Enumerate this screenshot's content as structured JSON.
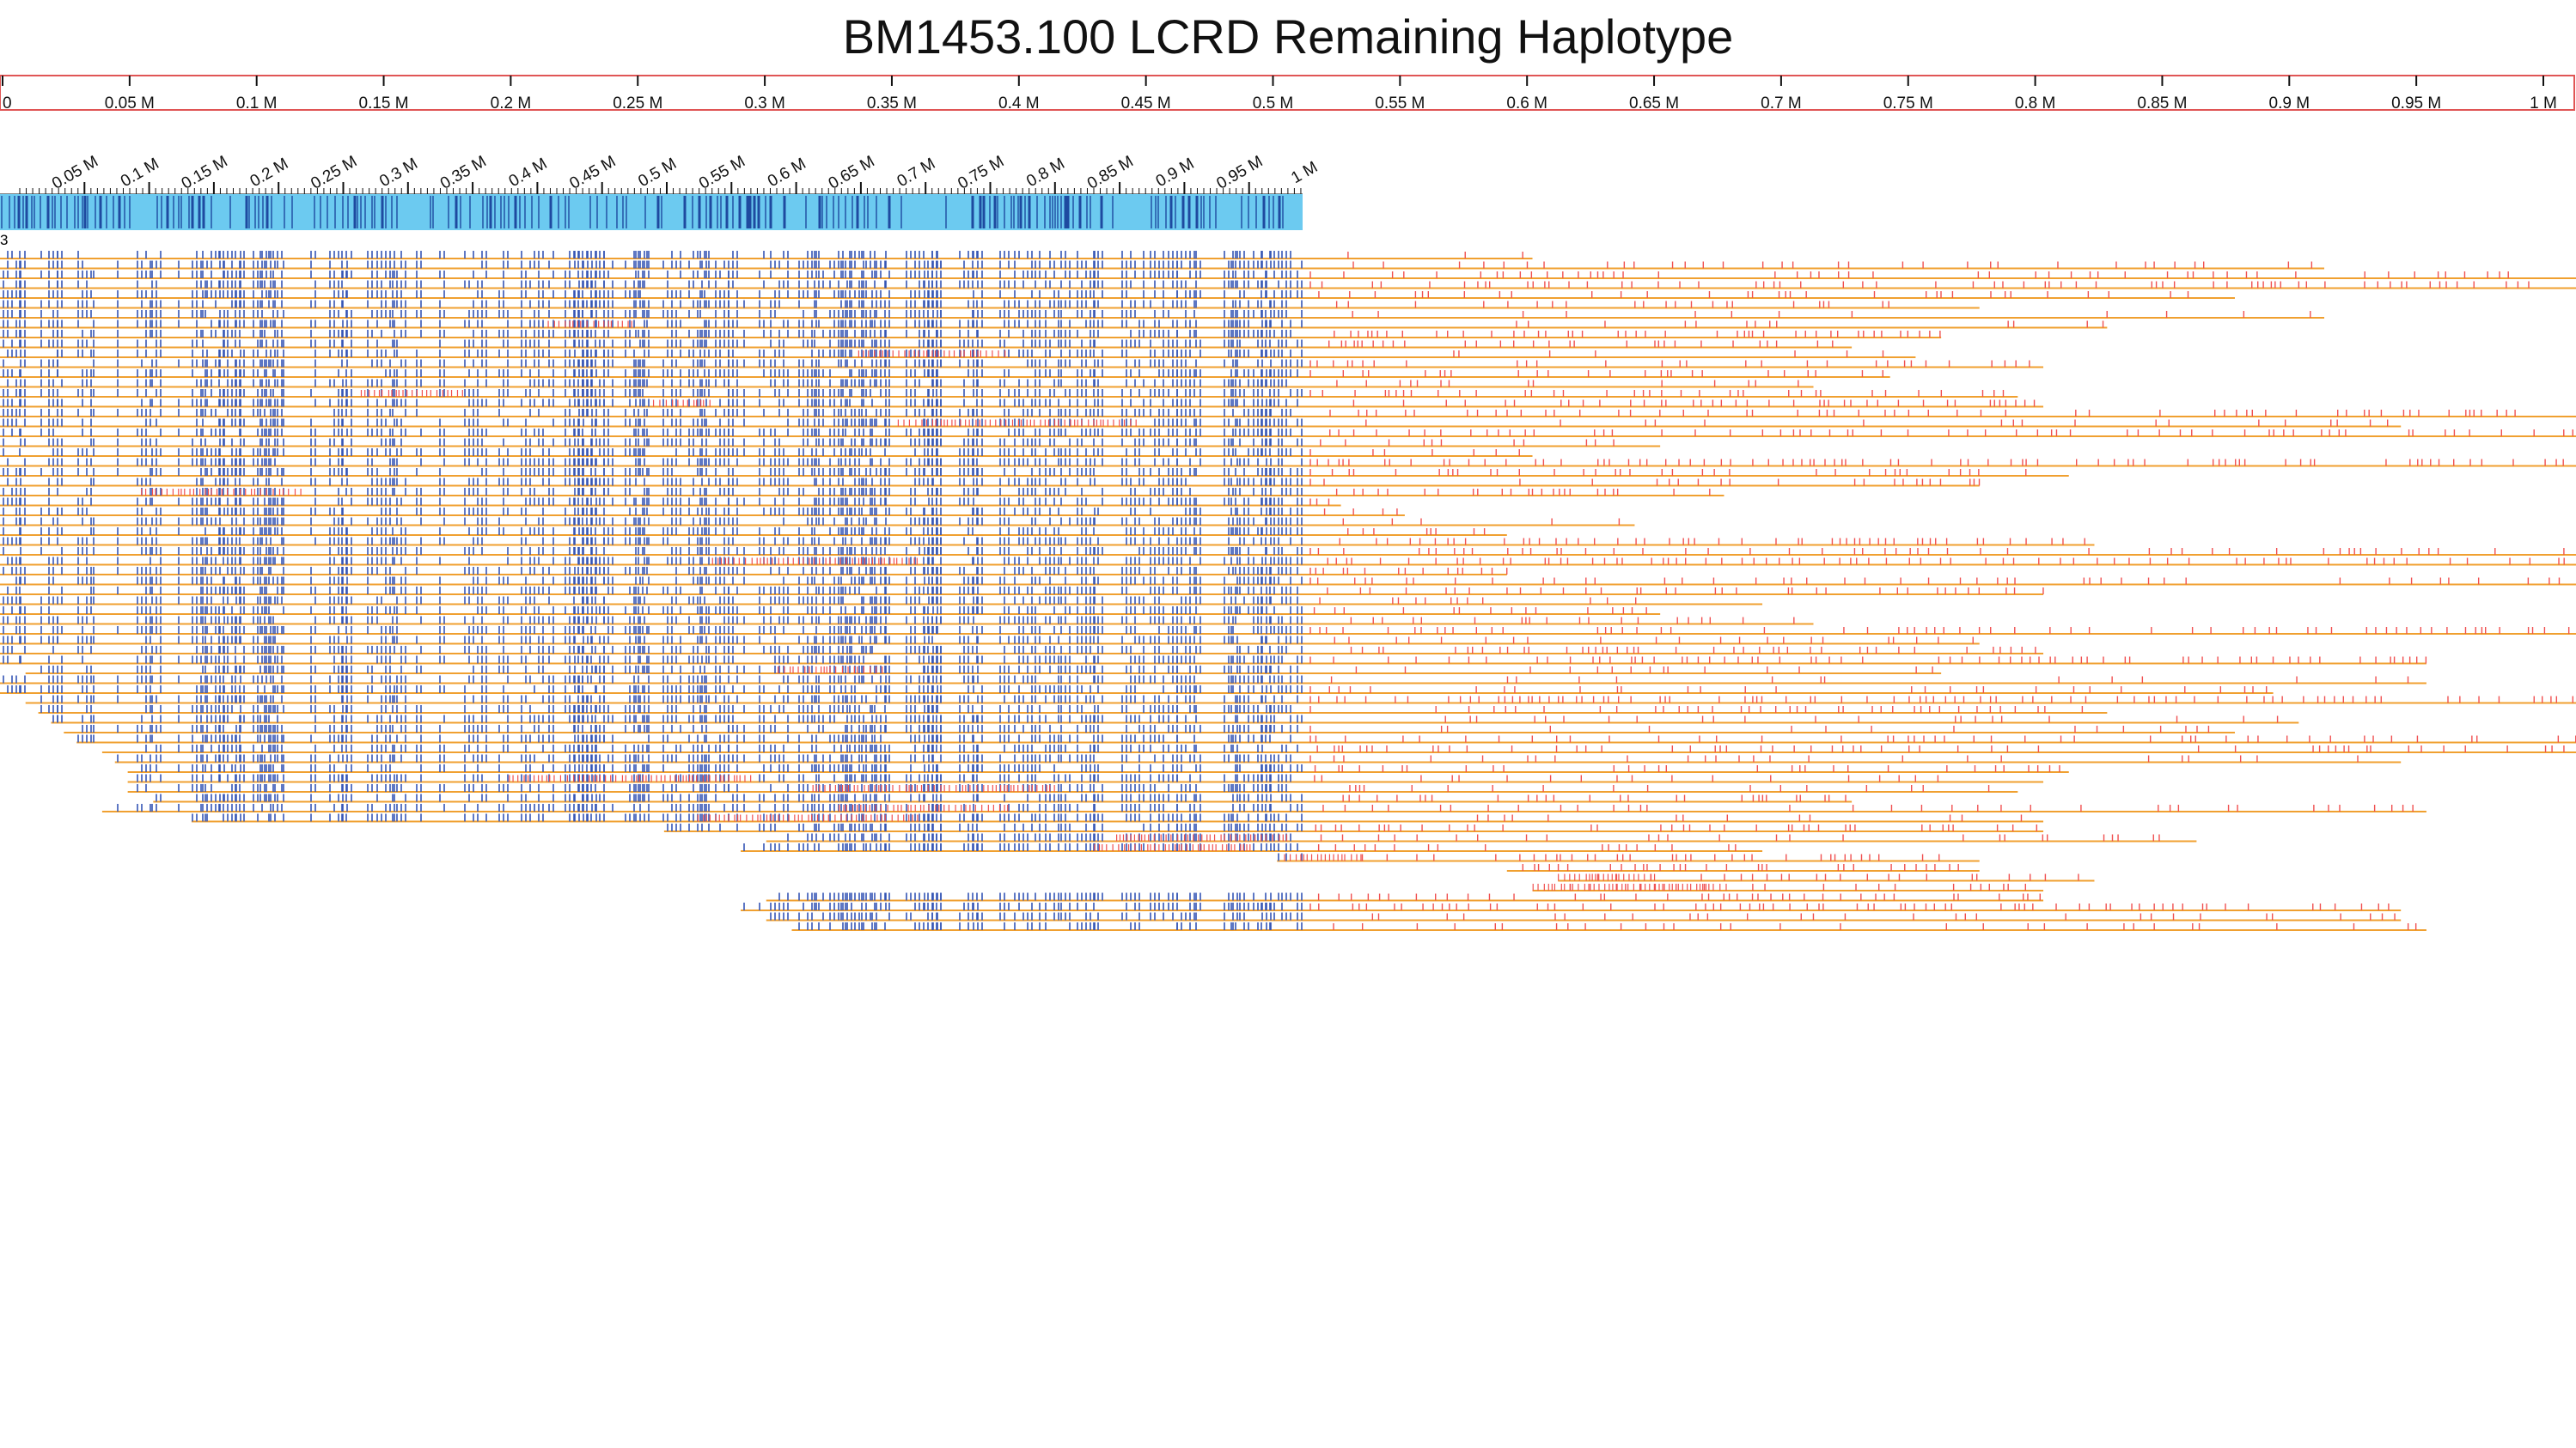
{
  "title": "BM1453.100 LCRD Remaining Haplotype",
  "colors": {
    "ruler_border": "#e05555",
    "ref_bar": "#6ccaf0",
    "ref_dark": "#1e4aa0",
    "read_line": "#f0a030",
    "matched_tick": "#3555b5",
    "mismatch_tick": "#f05050",
    "text": "#111111"
  },
  "top_ruler": {
    "min": 0,
    "max": 1,
    "labels": [
      "0",
      "0.05 M",
      "0.1 M",
      "0.15 M",
      "0.2 M",
      "0.25 M",
      "0.3 M",
      "0.35 M",
      "0.4 M",
      "0.45 M",
      "0.5 M",
      "0.55 M",
      "0.6 M",
      "0.65 M",
      "0.7 M",
      "0.75 M",
      "0.8 M",
      "0.85 M",
      "0.9 M",
      "0.95 M",
      "1 M"
    ]
  },
  "reference": {
    "label": "3",
    "min": 0,
    "max": 1.02,
    "labels": [
      "0.05 M",
      "0.1 M",
      "0.15 M",
      "0.2 M",
      "0.25 M",
      "0.3 M",
      "0.35 M",
      "0.4 M",
      "0.45 M",
      "0.5 M",
      "0.55 M",
      "0.6 M",
      "0.65 M",
      "0.7 M",
      "0.75 M",
      "0.8 M",
      "0.85 M",
      "0.9 M",
      "0.95 M",
      "1 M"
    ]
  },
  "reads": [
    [
      0.0,
      1.2
    ],
    [
      0.0,
      1.82
    ],
    [
      0.0,
      2.35
    ],
    [
      0.0,
      2.2
    ],
    [
      0.0,
      1.75
    ],
    [
      0.0,
      1.55
    ],
    [
      0.0,
      1.82
    ],
    [
      0.0,
      1.65
    ],
    [
      0.0,
      1.52
    ],
    [
      0.0,
      1.45
    ],
    [
      0.0,
      1.5
    ],
    [
      0.0,
      1.6
    ],
    [
      0.0,
      1.48
    ],
    [
      0.0,
      1.42
    ],
    [
      0.0,
      1.58
    ],
    [
      0.0,
      1.6
    ],
    [
      0.0,
      2.72
    ],
    [
      0.0,
      1.88
    ],
    [
      0.0,
      2.22
    ],
    [
      0.0,
      1.3
    ],
    [
      0.0,
      1.2
    ],
    [
      0.0,
      2.36
    ],
    [
      0.0,
      1.62
    ],
    [
      0.0,
      1.55
    ],
    [
      0.0,
      1.35
    ],
    [
      0.0,
      1.05
    ],
    [
      0.0,
      1.1
    ],
    [
      0.0,
      1.28
    ],
    [
      0.0,
      1.18
    ],
    [
      0.0,
      1.64
    ],
    [
      0.0,
      2.6
    ],
    [
      0.0,
      2.08
    ],
    [
      0.0,
      1.18
    ],
    [
      0.0,
      2.2
    ],
    [
      0.0,
      1.6
    ],
    [
      0.0,
      1.38
    ],
    [
      0.0,
      1.3
    ],
    [
      0.0,
      1.42
    ],
    [
      0.0,
      2.02
    ],
    [
      0.0,
      1.55
    ],
    [
      0.0,
      1.6
    ],
    [
      0.0,
      1.9
    ],
    [
      0.02,
      1.52
    ],
    [
      0.0,
      1.9
    ],
    [
      0.0,
      1.78
    ],
    [
      0.02,
      2.3
    ],
    [
      0.03,
      1.65
    ],
    [
      0.04,
      1.8
    ],
    [
      0.05,
      1.75
    ],
    [
      0.06,
      2.52
    ],
    [
      0.08,
      2.02
    ],
    [
      0.09,
      1.88
    ],
    [
      0.1,
      1.62
    ],
    [
      0.1,
      1.6
    ],
    [
      0.1,
      1.58
    ],
    [
      0.12,
      1.45
    ],
    [
      0.08,
      1.9
    ],
    [
      0.15,
      1.6
    ],
    [
      0.52,
      1.6
    ],
    [
      0.6,
      1.72
    ],
    [
      0.58,
      1.38
    ],
    [
      1.0,
      1.55
    ],
    [
      1.18,
      1.55
    ],
    [
      1.22,
      1.64
    ],
    [
      1.2,
      1.6
    ],
    [
      0.6,
      1.6
    ],
    [
      0.58,
      1.88
    ],
    [
      0.6,
      1.88
    ],
    [
      0.62,
      1.9
    ]
  ]
}
